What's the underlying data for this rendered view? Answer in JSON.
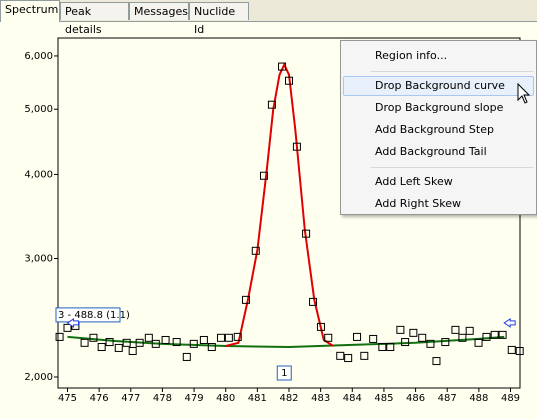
{
  "tabs": [
    "Spectrum",
    "Peak details",
    "Messages",
    "Nuclide Id"
  ],
  "menu": {
    "items": [
      "Region info...",
      "Drop Background curve",
      "Drop Background slope",
      "Add Background Step",
      "Add Background Tail",
      "Add Left Skew",
      "Add Right Skew"
    ]
  },
  "chart_data": {
    "type": "scatter",
    "log_y": true,
    "xlim": [
      474.7,
      489.3
    ],
    "ylim": [
      1926,
      6380
    ],
    "xticks": [
      475,
      476,
      477,
      478,
      479,
      480,
      481,
      482,
      483,
      484,
      485,
      486,
      487,
      488,
      489
    ],
    "yticks": [
      {
        "value": 2000,
        "label": "2,000"
      },
      {
        "value": 3000,
        "label": "3,000"
      },
      {
        "value": 4000,
        "label": "4,000"
      },
      {
        "value": 5000,
        "label": "5,000"
      },
      {
        "value": 6000,
        "label": "6,000"
      }
    ],
    "points": {
      "color": "#000000",
      "x": [
        474.75,
        475.0,
        475.25,
        475.54,
        475.82,
        476.08,
        476.33,
        476.62,
        476.87,
        477.06,
        477.28,
        477.57,
        477.79,
        478.1,
        478.45,
        478.77,
        478.99,
        479.31,
        479.56,
        479.85,
        480.1,
        480.38,
        480.64,
        480.95,
        481.21,
        481.46,
        481.78,
        482.0,
        482.25,
        482.54,
        482.76,
        483.01,
        483.24,
        483.62,
        483.87,
        484.15,
        484.38,
        484.66,
        484.95,
        485.2,
        485.52,
        485.67,
        485.93,
        486.21,
        486.47,
        486.66,
        486.94,
        487.26,
        487.48,
        487.71,
        487.99,
        488.24,
        488.5,
        488.75,
        489.04,
        489.29
      ],
      "values": [
        2294,
        2366,
        2382,
        2248,
        2287,
        2216,
        2254,
        2209,
        2248,
        2186,
        2248,
        2287,
        2240,
        2270,
        2254,
        2142,
        2240,
        2270,
        2216,
        2287,
        2287,
        2294,
        2604,
        3080,
        3982,
        5078,
        5786,
        5512,
        4398,
        3266,
        2586,
        2374,
        2287,
        2150,
        2134,
        2294,
        2150,
        2278,
        2216,
        2216,
        2350,
        2254,
        2326,
        2287,
        2240,
        2112,
        2254,
        2350,
        2287,
        2342,
        2248,
        2294,
        2310,
        2310,
        2194,
        2186
      ]
    },
    "fit": {
      "color": "#e00000",
      "x": [
        480.0,
        480.4,
        480.7,
        481.0,
        481.3,
        481.5,
        481.7,
        481.85,
        482.0,
        482.2,
        482.5,
        482.8,
        483.1,
        483.4
      ],
      "values": [
        2224,
        2248,
        2604,
        3090,
        4064,
        4994,
        5626,
        5824,
        5626,
        4664,
        3310,
        2604,
        2270,
        2224
      ]
    },
    "background": {
      "color": "#107010",
      "x": [
        475.0,
        476.5,
        478.0,
        480.0,
        482.0,
        484.0,
        486.0,
        488.0,
        488.8
      ],
      "values": [
        2294,
        2262,
        2240,
        2224,
        2216,
        2232,
        2248,
        2278,
        2294
      ]
    },
    "region_label": "3 - 488.8 (1.1)",
    "peak_label": "1"
  }
}
